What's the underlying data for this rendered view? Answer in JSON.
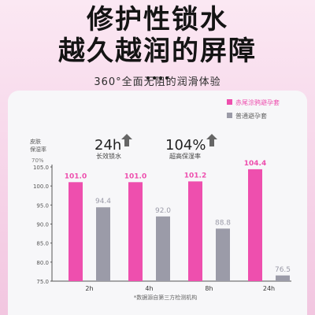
{
  "header": {
    "line1": "修护性锁水",
    "line2": "越久越润的屏障",
    "subtitle": "360°全面无阻的润滑体验"
  },
  "badges": [
    {
      "value": "24h",
      "label": "长效锁水"
    },
    {
      "value": "104%",
      "label": "超高保湿率"
    }
  ],
  "footnote": "*数据源自第三方检测机构",
  "colors": {
    "pink": "#ee4fae",
    "gray": "#9b9ba8"
  },
  "chart_data": {
    "type": "bar",
    "ylabel": "皮肤\n保湿率",
    "yunit": "70%",
    "ylim": [
      75.0,
      105.0
    ],
    "yticks": [
      "75.0",
      "80.0",
      "85.0",
      "90.0",
      "95.0",
      "100.0",
      "105.0"
    ],
    "categories": [
      "2h",
      "4h",
      "8h",
      "24h"
    ],
    "series": [
      {
        "name": "赤尾涂鸦避孕套",
        "values": [
          101.0,
          101.0,
          101.2,
          104.4
        ],
        "labels": [
          "101.0",
          "101.0",
          "101.2",
          "104.4"
        ]
      },
      {
        "name": "普通避孕套",
        "values": [
          94.4,
          92.0,
          88.8,
          76.5
        ],
        "labels": [
          "94.4",
          "92.0",
          "88.8",
          "76.5"
        ]
      }
    ],
    "legend_position": "top-right",
    "grid": false
  }
}
